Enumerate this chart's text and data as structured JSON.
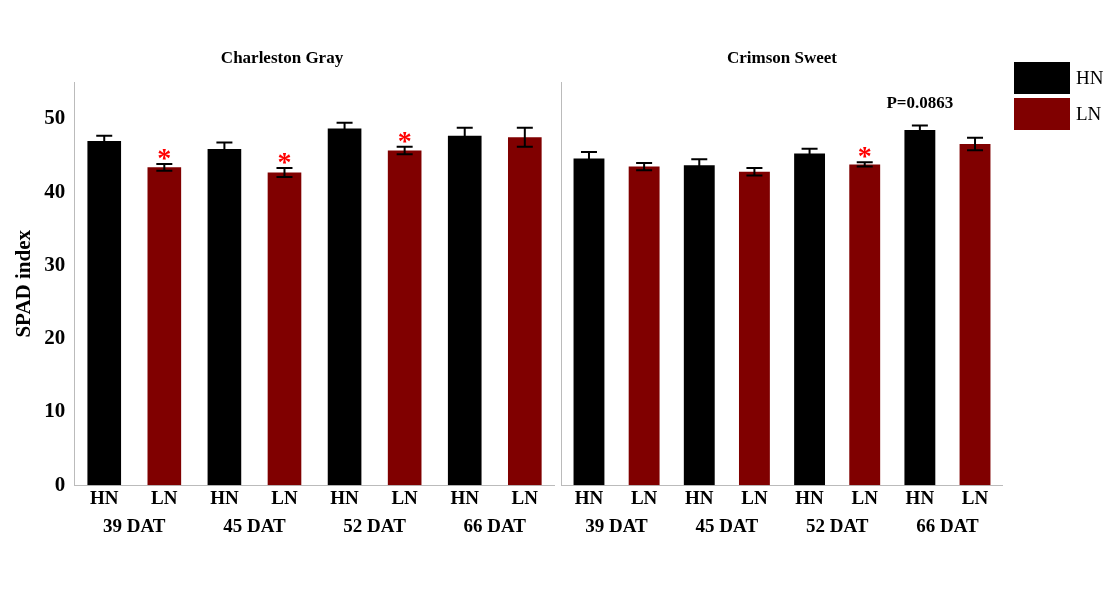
{
  "chart_data": [
    {
      "type": "bar",
      "title": "Charleston Gray",
      "ylabel": "SPAD index",
      "categories": [
        "39 DAT",
        "45 DAT",
        "52 DAT",
        "66 DAT"
      ],
      "series": [
        {
          "name": "HN",
          "color": "#000000",
          "values": [
            47.0,
            45.9,
            48.7,
            47.7
          ],
          "errors": [
            0.7,
            0.9,
            0.8,
            1.1
          ]
        },
        {
          "name": "LN",
          "color": "#800000",
          "values": [
            43.4,
            42.7,
            45.7,
            47.5
          ],
          "errors": [
            0.45,
            0.6,
            0.5,
            1.3
          ]
        }
      ],
      "ylim": [
        0,
        55
      ],
      "yticks": [
        0,
        10,
        20,
        30,
        40,
        50
      ],
      "grid": false,
      "legend": false,
      "annotations": [
        "*",
        "*",
        "*"
      ]
    },
    {
      "type": "bar",
      "title": "Crimson Sweet",
      "categories": [
        "39 DAT",
        "45 DAT",
        "52 DAT",
        "66 DAT"
      ],
      "series": [
        {
          "name": "HN",
          "color": "#000000",
          "values": [
            44.6,
            43.7,
            45.3,
            48.5
          ],
          "errors": [
            0.9,
            0.8,
            0.65,
            0.6
          ]
        },
        {
          "name": "LN",
          "color": "#800000",
          "values": [
            43.5,
            42.8,
            43.8,
            46.6
          ],
          "errors": [
            0.5,
            0.5,
            0.3,
            0.85
          ]
        }
      ],
      "ylim": [
        0,
        55
      ],
      "yticks": [
        0,
        10,
        20,
        30,
        40,
        50
      ],
      "grid": false,
      "legend": "right",
      "tick_labels": "x",
      "annotations": [
        "*",
        "P=0.0863"
      ]
    }
  ]
}
